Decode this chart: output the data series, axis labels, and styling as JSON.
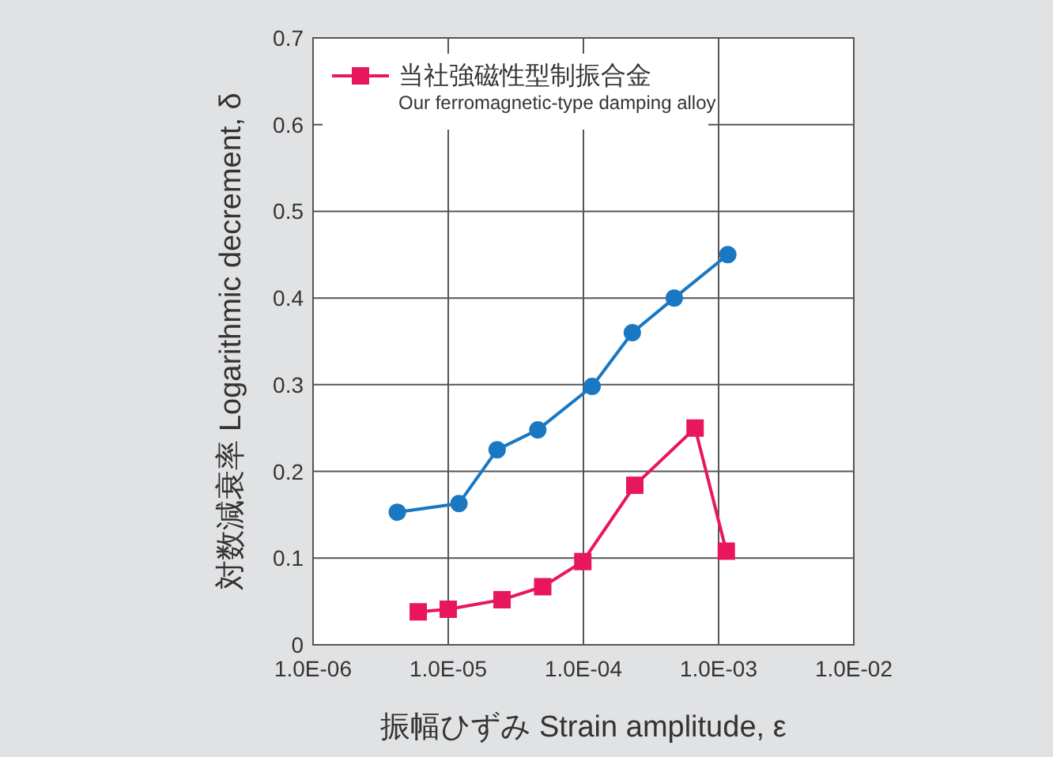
{
  "chart_data": {
    "type": "line",
    "xlabel": "振幅ひずみ Strain amplitude, ε",
    "ylabel": "対数減衰率 Logarithmic decrement, δ",
    "log": "x",
    "xlim": [
      1e-06,
      0.01
    ],
    "xticks": [
      {
        "value": 1e-06,
        "label": "1.0E-06"
      },
      {
        "value": 1e-05,
        "label": "1.0E-05"
      },
      {
        "value": 0.0001,
        "label": "1.0E-04"
      },
      {
        "value": 0.001,
        "label": "1.0E-03"
      },
      {
        "value": 0.01,
        "label": "1.0E-02"
      }
    ],
    "ylim": [
      0,
      0.7
    ],
    "yticks": [
      0,
      0.1,
      0.2,
      0.3,
      0.4,
      0.5,
      0.6,
      0.7
    ],
    "grid": true,
    "legend": "top left",
    "series": [
      {
        "color": "#1a78c2",
        "marker": "circle",
        "x": [
          4.2e-06,
          1.2e-05,
          2.3e-05,
          4.6e-05,
          0.000116,
          0.00023,
          0.00047,
          0.00117
        ],
        "values": [
          0.153,
          0.163,
          0.225,
          0.248,
          0.298,
          0.36,
          0.4,
          0.45
        ]
      },
      {
        "name": "当社強磁性型制振合金\nOur ferromagnetic-type damping alloy",
        "color": "#e8175d",
        "marker": "square",
        "x": [
          6e-06,
          1e-05,
          2.5e-05,
          5e-05,
          9.9e-05,
          0.00024,
          0.00067,
          0.00114
        ],
        "values": [
          0.038,
          0.041,
          0.052,
          0.067,
          0.096,
          0.184,
          0.25,
          0.108
        ]
      }
    ]
  }
}
